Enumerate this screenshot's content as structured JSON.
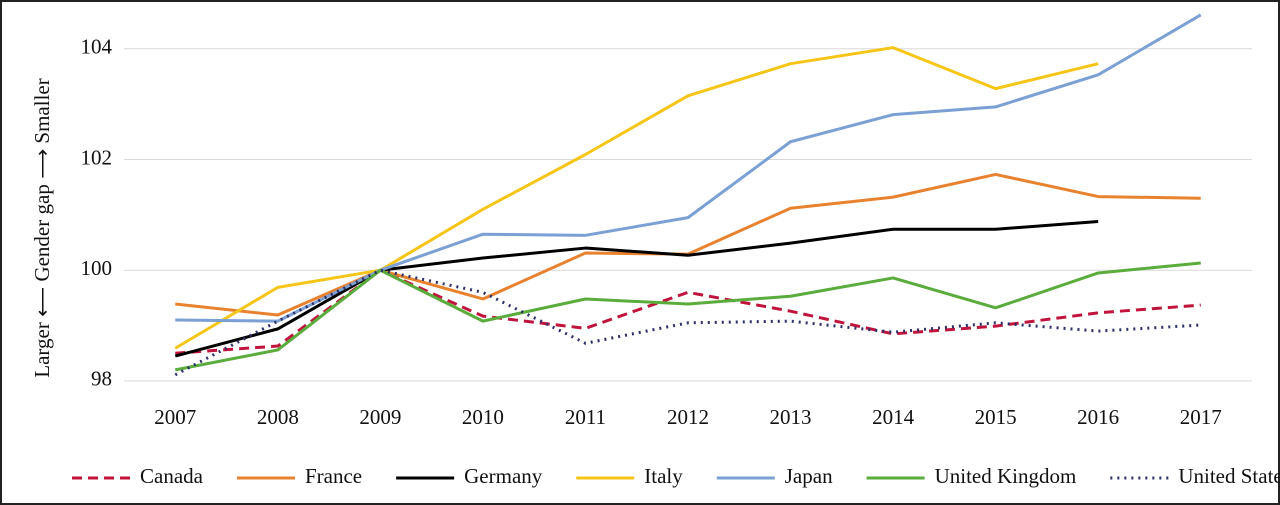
{
  "chart_data": {
    "type": "line",
    "y_label": "Larger ⟵ Gender gap  ⟶ Smaller",
    "categories": [
      "2007",
      "2008",
      "2009",
      "2010",
      "2011",
      "2012",
      "2013",
      "2014",
      "2015",
      "2016",
      "2017"
    ],
    "ylim": [
      97.8,
      104.7
    ],
    "yticks": [
      98,
      100,
      102,
      104
    ],
    "grid": true,
    "legend": "bottom",
    "series": [
      {
        "name": "Canada",
        "color": "#c0143c",
        "style": "dashed",
        "values": [
          98.5,
          98.63,
          100,
          99.17,
          98.95,
          99.6,
          99.26,
          98.85,
          98.99,
          99.23,
          99.37
        ]
      },
      {
        "name": "France",
        "color": "#e8822e",
        "style": "solid",
        "values": [
          99.39,
          99.19,
          100,
          99.48,
          100.31,
          100.29,
          101.12,
          101.32,
          101.73,
          101.33,
          101.3
        ]
      },
      {
        "name": "Germany",
        "color": "#000000",
        "style": "solid",
        "values": [
          98.45,
          98.94,
          100,
          100.22,
          100.4,
          100.27,
          100.49,
          100.74,
          100.74,
          100.88,
          null
        ]
      },
      {
        "name": "Italy",
        "color": "#f5c518",
        "style": "solid",
        "values": [
          98.59,
          99.69,
          100,
          101.1,
          102.09,
          103.15,
          103.73,
          104.02,
          103.28,
          103.73,
          null
        ]
      },
      {
        "name": "Japan",
        "color": "#7ba0d4",
        "style": "solid",
        "values": [
          99.1,
          99.08,
          100,
          100.65,
          100.63,
          100.95,
          102.32,
          102.81,
          102.95,
          103.53,
          104.61
        ]
      },
      {
        "name": "United Kingdom",
        "color": "#5aac3c",
        "style": "solid",
        "values": [
          98.2,
          98.56,
          100,
          99.08,
          99.48,
          99.39,
          99.53,
          99.86,
          99.32,
          99.95,
          100.13
        ]
      },
      {
        "name": "United States",
        "color": "#2e3068",
        "style": "dotted",
        "values": [
          98.11,
          99.08,
          100,
          99.6,
          98.68,
          99.05,
          99.08,
          98.88,
          99.05,
          98.9,
          99.01
        ]
      }
    ]
  }
}
